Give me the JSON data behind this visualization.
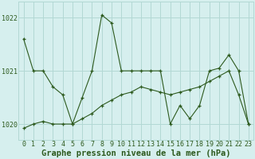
{
  "title": "Graphe pression niveau de la mer (hPa)",
  "bg_color": "#d6efee",
  "grid_color": "#b2d8d4",
  "line_color": "#2d5a1e",
  "hours": [
    0,
    1,
    2,
    3,
    4,
    5,
    6,
    7,
    8,
    9,
    10,
    11,
    12,
    13,
    14,
    15,
    16,
    17,
    18,
    19,
    20,
    21,
    22,
    23
  ],
  "pressure_upper": [
    1021.6,
    1021.0,
    1021.0,
    1020.7,
    1020.55,
    1020.0,
    1020.5,
    1021.0,
    1022.05,
    1021.9,
    1021.0,
    1021.0,
    1021.0,
    1021.0,
    1021.0,
    1020.0,
    1020.35,
    1020.1,
    1020.35,
    1021.0,
    1021.05,
    1021.3,
    1021.0,
    1020.0
  ],
  "pressure_lower": [
    1019.92,
    1020.0,
    1020.05,
    1020.0,
    1020.0,
    1020.0,
    1020.1,
    1020.2,
    1020.35,
    1020.45,
    1020.55,
    1020.6,
    1020.7,
    1020.65,
    1020.6,
    1020.55,
    1020.6,
    1020.65,
    1020.7,
    1020.8,
    1020.9,
    1021.0,
    1020.55,
    1020.0
  ],
  "ylim": [
    1019.7,
    1022.3
  ],
  "yticks": [
    1020,
    1021,
    1022
  ],
  "xticks": [
    0,
    1,
    2,
    3,
    4,
    5,
    6,
    7,
    8,
    9,
    10,
    11,
    12,
    13,
    14,
    15,
    16,
    17,
    18,
    19,
    20,
    21,
    22,
    23
  ],
  "title_fontsize": 7.5,
  "tick_fontsize": 6.0,
  "fig_width": 3.2,
  "fig_height": 2.0,
  "dpi": 100
}
